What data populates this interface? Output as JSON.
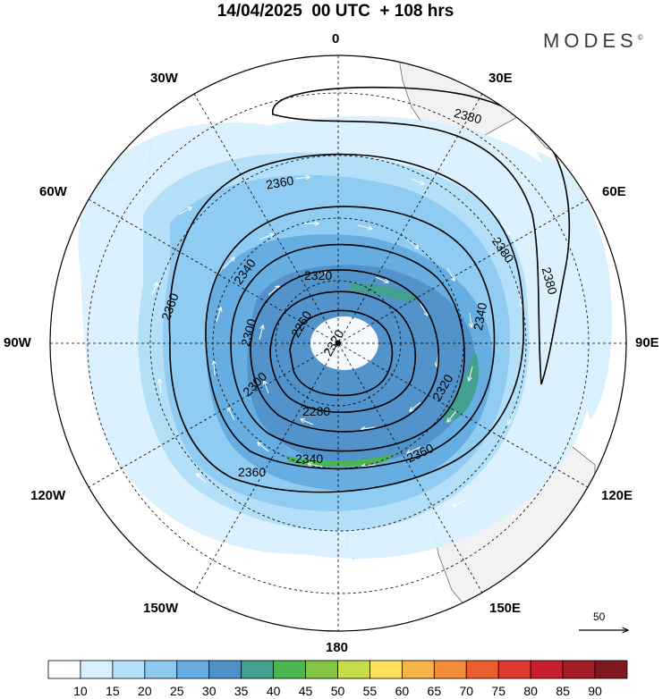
{
  "header": {
    "title": "14/04/2025  00 UTC  + 108 hrs",
    "brand": "MODES",
    "brand_mark": "©"
  },
  "map": {
    "projection": "south-polar-stereographic",
    "longitude_labels": {
      "top": "0",
      "upper_left": "30W",
      "upper_right": "30E",
      "left_upper": "60W",
      "right_upper": "60E",
      "left": "90W",
      "right": "90E",
      "left_lower": "120W",
      "right_lower": "120E",
      "lower_left": "150W",
      "lower_right": "150E",
      "bottom": "180"
    },
    "contour_labels": [
      {
        "text": "2380",
        "placement": "upper-right of center"
      },
      {
        "text": "2360",
        "placement": "upper-left of center"
      },
      {
        "text": "2380",
        "placement": "right of center, upper"
      },
      {
        "text": "2380",
        "placement": "right of center"
      },
      {
        "text": "2340",
        "placement": "left of center"
      },
      {
        "text": "2320",
        "placement": "upper, near center"
      },
      {
        "text": "2360",
        "placement": "left"
      },
      {
        "text": "2260",
        "placement": "left, near pole"
      },
      {
        "text": "2300",
        "placement": "left, lower"
      },
      {
        "text": "2340",
        "placement": "right"
      },
      {
        "text": "2280",
        "placement": "below pole"
      },
      {
        "text": "2320",
        "placement": "lower right"
      },
      {
        "text": "2300",
        "placement": "lower"
      },
      {
        "text": "2360",
        "placement": "lower right"
      },
      {
        "text": "2340",
        "placement": "lower"
      },
      {
        "text": "2360",
        "placement": "lower left"
      },
      {
        "text": "2320",
        "placement": "lower left"
      }
    ],
    "colors": {
      "land": "#f2f2f2",
      "coast": "#555555",
      "contour": "#000000",
      "grid": "#000000",
      "vectors": "#ffffff"
    },
    "reference_vector": {
      "value": "50"
    }
  },
  "colorbar": {
    "ticks": [
      "10",
      "15",
      "20",
      "25",
      "30",
      "35",
      "40",
      "45",
      "50",
      "55",
      "60",
      "65",
      "70",
      "75",
      "80",
      "85",
      "90"
    ],
    "colors": [
      "#ffffff",
      "#d9f0fd",
      "#b4dff8",
      "#8ec9f0",
      "#66aee2",
      "#4f90c8",
      "#43a08e",
      "#4db550",
      "#84c545",
      "#c7dc4b",
      "#fde15a",
      "#f6b447",
      "#f28c37",
      "#ec5d2e",
      "#de3930",
      "#c71f2b",
      "#a31c26",
      "#7e1a1f"
    ]
  }
}
